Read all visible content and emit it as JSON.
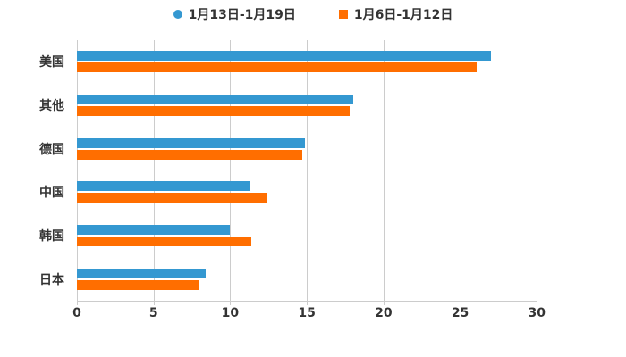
{
  "colors": {
    "series_blue": "#3498D1",
    "series_orange": "#FF6E00",
    "grid": "#cccccc",
    "text": "#333333",
    "background": "#ffffff"
  },
  "legend": {
    "items": [
      {
        "label": "1月13日-1月19日",
        "color": "#3498D1",
        "marker": "circle"
      },
      {
        "label": "1月6日-1月12日",
        "color": "#FF6E00",
        "marker": "square"
      }
    ]
  },
  "chart_data": {
    "type": "bar",
    "orientation": "horizontal",
    "title": "",
    "xlabel": "",
    "ylabel": "",
    "categories": [
      "美国",
      "其他",
      "德国",
      "中国",
      "韩国",
      "日本"
    ],
    "series": [
      {
        "name": "1月13日-1月19日",
        "color": "#3498D1",
        "values": [
          27.0,
          18.0,
          14.9,
          11.3,
          10.0,
          8.4
        ]
      },
      {
        "name": "1月6日-1月12日",
        "color": "#FF6E00",
        "values": [
          26.1,
          17.8,
          14.7,
          12.4,
          11.4,
          8.0
        ]
      }
    ],
    "x_ticks": [
      0,
      5,
      10,
      15,
      20,
      25,
      30
    ],
    "xlim": [
      0,
      35
    ],
    "grid": true,
    "legend_position": "top"
  }
}
